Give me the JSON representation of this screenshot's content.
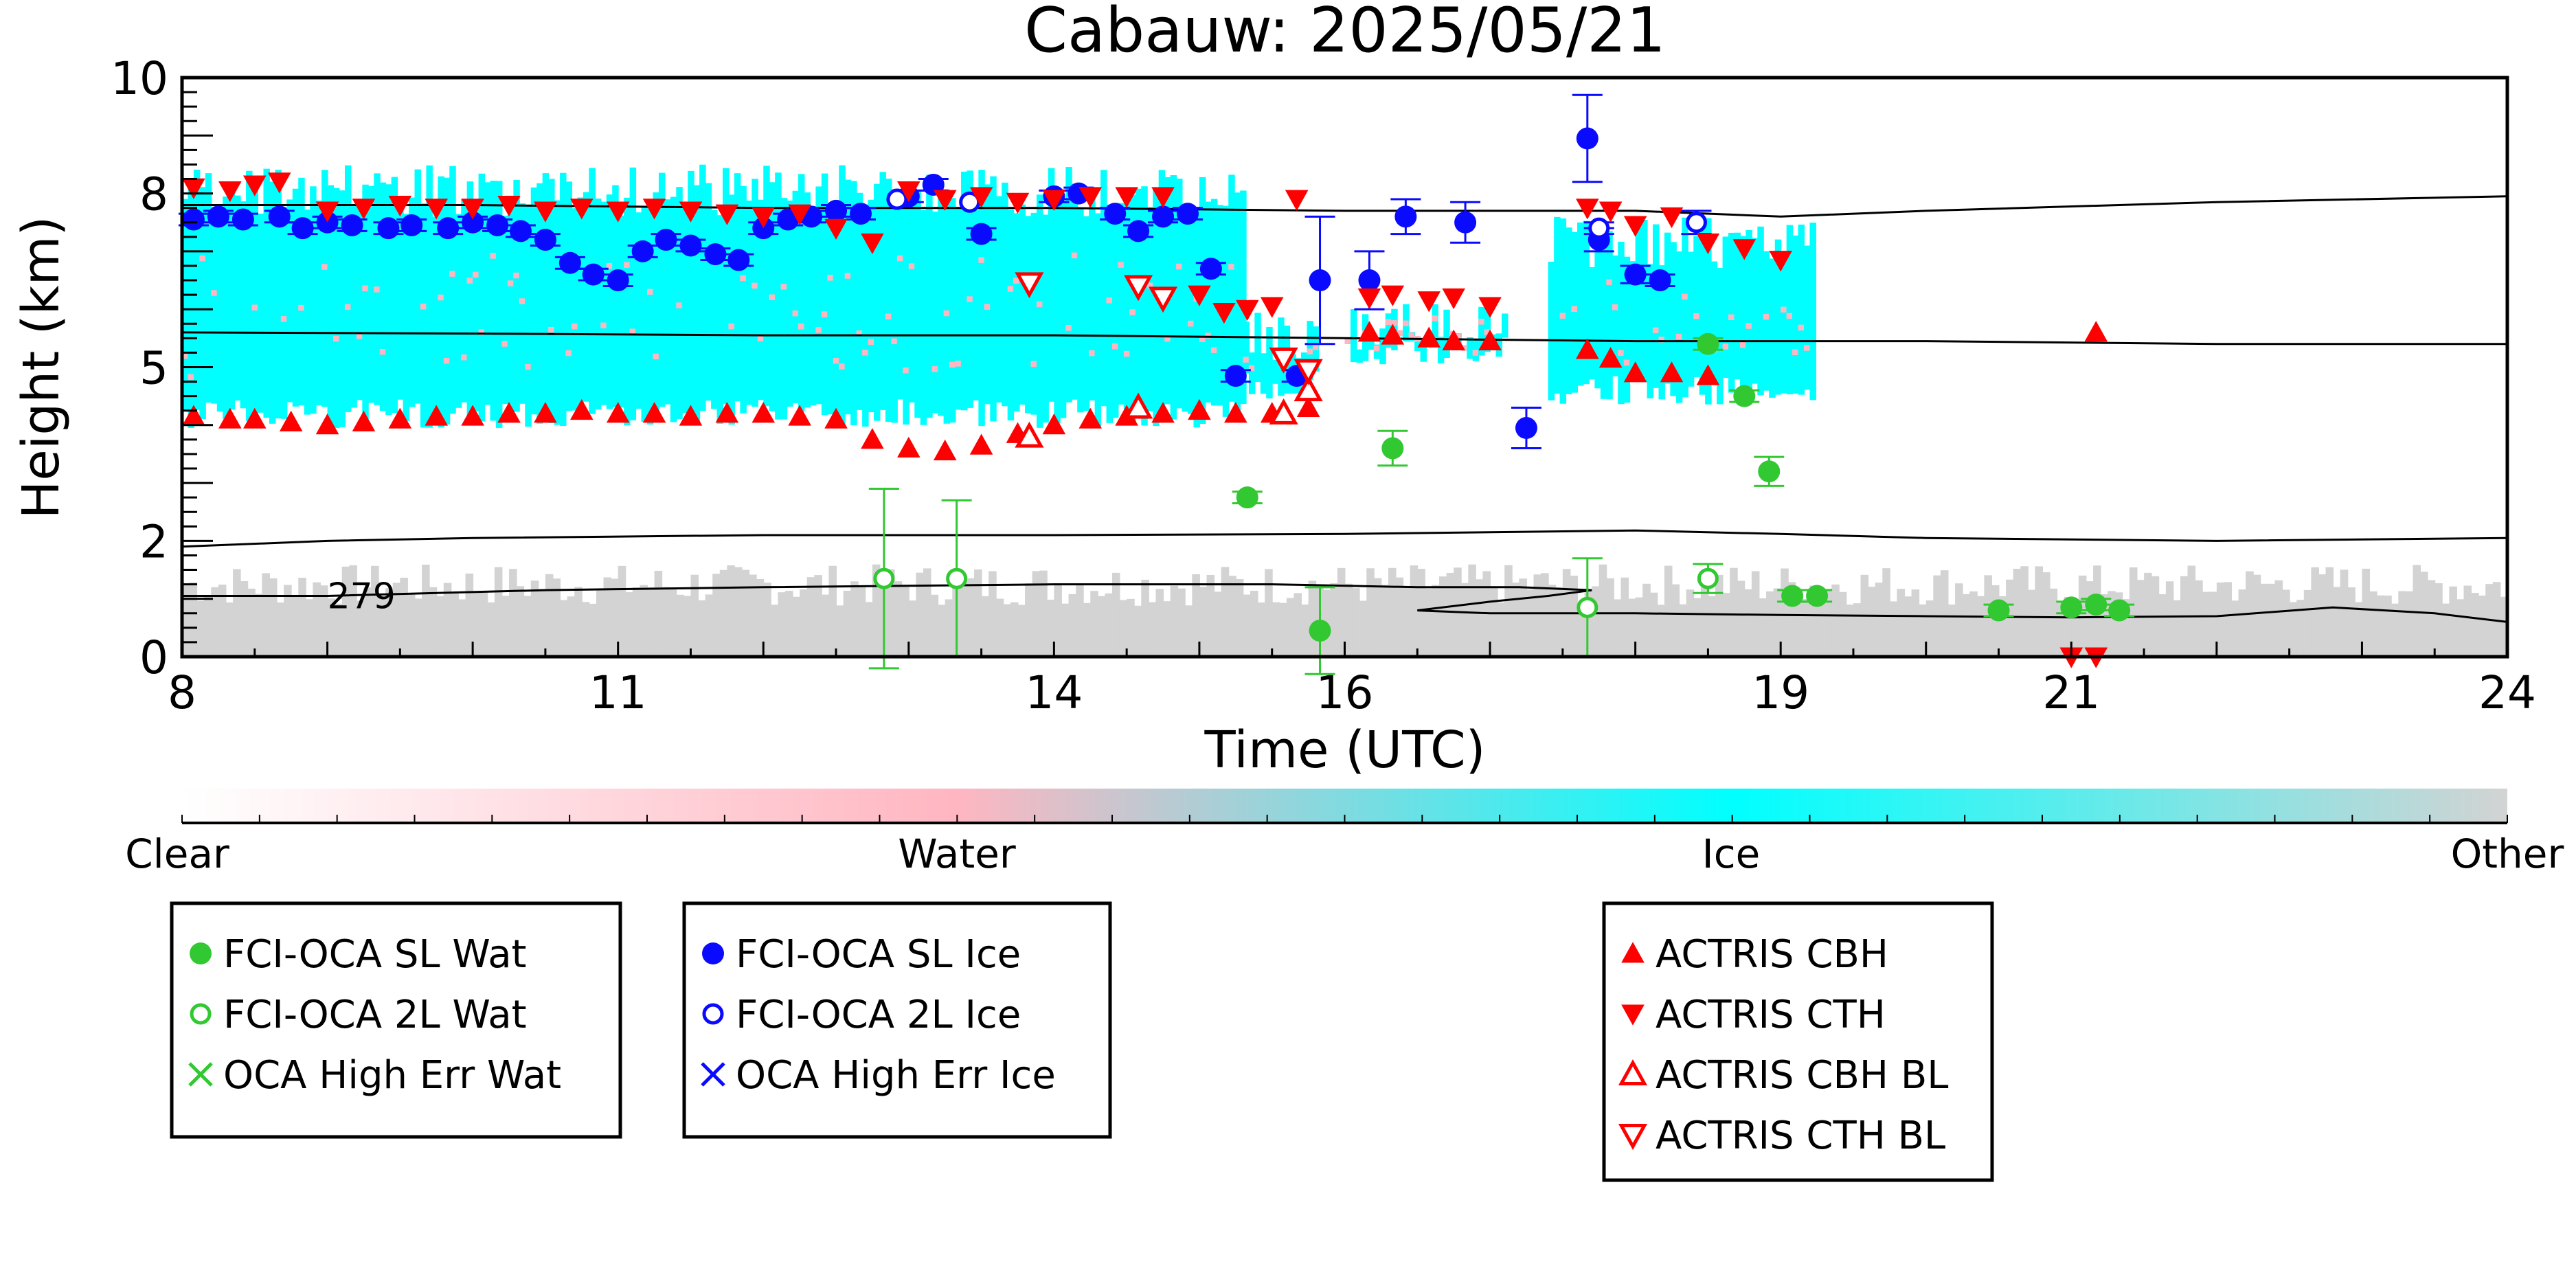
{
  "chart_data": {
    "type": "scatter",
    "title": "Cabauw: 2025/05/21",
    "xlabel": "Time (UTC)",
    "ylabel": "Height (km)",
    "xlim": [
      8,
      24
    ],
    "ylim": [
      0,
      10
    ],
    "x_ticks": [
      8,
      11,
      14,
      16,
      19,
      21,
      24
    ],
    "y_ticks": [
      0,
      2,
      5,
      8,
      10
    ],
    "y_tick_labels": [
      "0",
      "2",
      "5",
      "8",
      "10"
    ],
    "grid": false,
    "colorbar": {
      "labels": [
        "Clear",
        "Water",
        "Ice",
        "Other"
      ],
      "colors": [
        "#ffffff",
        "#ffb6c1",
        "#00ffff",
        "#d3d3d3"
      ]
    },
    "background_field": {
      "description_free": true,
      "ice_layers": [
        {
          "x": [
            8.0,
            15.3
          ],
          "base": 4.2,
          "top": 8.5
        },
        {
          "x": [
            15.3,
            15.8
          ],
          "base": 4.7,
          "top": 6.0
        },
        {
          "x": [
            16.0,
            17.1
          ],
          "base": 5.3,
          "top": 6.1
        },
        {
          "x": [
            17.4,
            19.2
          ],
          "base": 4.6,
          "top": 7.6
        }
      ],
      "other_layer": {
        "x": [
          8.0,
          24.0
        ],
        "base": 0.0,
        "top": 1.6
      }
    },
    "contours": [
      {
        "label": "",
        "x": [
          8,
          10,
          12,
          14,
          16,
          18,
          19,
          20,
          22,
          24
        ],
        "y": [
          7.8,
          7.8,
          7.75,
          7.75,
          7.7,
          7.7,
          7.6,
          7.7,
          7.85,
          7.95
        ]
      },
      {
        "label": "",
        "x": [
          8,
          10,
          12,
          14,
          16,
          18,
          19,
          20,
          22,
          24
        ],
        "y": [
          5.6,
          5.58,
          5.55,
          5.55,
          5.5,
          5.45,
          5.45,
          5.45,
          5.4,
          5.4
        ]
      },
      {
        "label": "",
        "x": [
          8,
          9,
          10,
          12,
          14,
          16,
          17,
          18,
          19,
          20,
          22,
          24
        ],
        "y": [
          1.9,
          2.0,
          2.05,
          2.1,
          2.1,
          2.12,
          2.15,
          2.18,
          2.12,
          2.05,
          2.0,
          2.05
        ]
      },
      {
        "label": "279",
        "x": [
          8,
          9,
          10.5,
          12,
          14,
          15.5,
          16.5,
          17.2,
          17.7,
          17.4,
          17.0,
          16.5,
          17.0,
          18.0,
          19.0,
          20.0,
          21.0,
          22.0,
          22.8,
          23.5,
          24.0
        ],
        "y": [
          1.05,
          1.05,
          1.15,
          1.2,
          1.25,
          1.25,
          1.2,
          1.2,
          1.15,
          1.05,
          0.95,
          0.8,
          0.75,
          0.75,
          0.72,
          0.7,
          0.68,
          0.7,
          0.85,
          0.75,
          0.6
        ]
      }
    ],
    "series": [
      {
        "name": "FCI-OCA SL Wat",
        "marker": "filled-circle",
        "color": "#32c832",
        "x": [
          15.33,
          15.83,
          16.33,
          18.5,
          18.75,
          18.92,
          19.08,
          19.25,
          20.5,
          21.0,
          21.17,
          21.33
        ],
        "y": [
          2.75,
          0.45,
          3.6,
          5.4,
          4.5,
          3.2,
          1.05,
          1.05,
          0.8,
          0.85,
          0.9,
          0.8
        ],
        "err": [
          0.1,
          0.75,
          0.3,
          0.1,
          0.1,
          0.25,
          0.1,
          0.1,
          0.1,
          0.1,
          0.1,
          0.1
        ]
      },
      {
        "name": "FCI-OCA 2L Wat",
        "marker": "open-circle",
        "color": "#32c832",
        "x": [
          12.83,
          13.33,
          17.67,
          18.5
        ],
        "y": [
          1.35,
          1.35,
          0.85,
          1.35
        ],
        "err": [
          1.55,
          1.35,
          0.85,
          0.25
        ]
      },
      {
        "name": "OCA High Err Wat",
        "marker": "x",
        "color": "#32c832",
        "x": [],
        "y": []
      },
      {
        "name": "FCI-OCA SL Ice",
        "marker": "filled-circle",
        "color": "#0a0aff",
        "x": [
          8.08,
          8.25,
          8.42,
          8.67,
          8.83,
          9.0,
          9.17,
          9.42,
          9.58,
          9.83,
          10.0,
          10.17,
          10.33,
          10.5,
          10.67,
          10.83,
          11.0,
          11.17,
          11.33,
          11.5,
          11.67,
          11.83,
          12.0,
          12.17,
          12.33,
          12.5,
          12.67,
          13.0,
          13.17,
          13.5,
          14.0,
          14.17,
          14.42,
          14.58,
          14.75,
          14.92,
          15.08,
          15.25,
          15.67,
          15.83,
          16.17,
          16.42,
          16.83,
          17.25,
          17.67,
          17.75,
          18.0,
          18.17
        ],
        "y": [
          7.55,
          7.6,
          7.55,
          7.6,
          7.4,
          7.5,
          7.45,
          7.4,
          7.45,
          7.4,
          7.5,
          7.45,
          7.35,
          7.2,
          6.8,
          6.6,
          6.5,
          7.0,
          7.2,
          7.1,
          6.95,
          6.85,
          7.4,
          7.55,
          7.6,
          7.7,
          7.65,
          7.95,
          8.15,
          7.3,
          7.95,
          8.0,
          7.65,
          7.35,
          7.6,
          7.65,
          6.7,
          4.85,
          4.85,
          6.5,
          6.5,
          7.6,
          7.5,
          3.95,
          8.95,
          7.2,
          6.6,
          6.5
        ],
        "err": [
          0.1,
          0.1,
          0.1,
          0.1,
          0.1,
          0.1,
          0.1,
          0.1,
          0.1,
          0.1,
          0.1,
          0.1,
          0.1,
          0.1,
          0.1,
          0.1,
          0.1,
          0.1,
          0.1,
          0.1,
          0.1,
          0.1,
          0.1,
          0.1,
          0.1,
          0.1,
          0.1,
          0.1,
          0.1,
          0.1,
          0.1,
          0.1,
          0.1,
          0.1,
          0.1,
          0.1,
          0.1,
          0.1,
          0.1,
          1.1,
          0.5,
          0.3,
          0.35,
          0.35,
          0.75,
          0.2,
          0.15,
          0.1
        ]
      },
      {
        "name": "FCI-OCA 2L Ice",
        "marker": "open-circle",
        "color": "#0a0aff",
        "x": [
          12.92,
          13.42,
          17.75,
          18.42
        ],
        "y": [
          7.9,
          7.85,
          7.4,
          7.5
        ],
        "err": [
          0.0,
          0.0,
          0.1,
          0.2
        ]
      },
      {
        "name": "OCA High Err Ice",
        "marker": "x",
        "color": "#0a0aff",
        "x": [],
        "y": []
      },
      {
        "name": "ACTRIS CBH",
        "marker": "filled-triangle-up",
        "color": "#ff0000",
        "x": [
          8.08,
          8.33,
          8.5,
          8.75,
          9.0,
          9.25,
          9.5,
          9.75,
          10.0,
          10.25,
          10.5,
          10.75,
          11.0,
          11.25,
          11.5,
          11.75,
          12.0,
          12.25,
          12.5,
          12.75,
          13.0,
          13.25,
          13.5,
          13.75,
          14.0,
          14.25,
          14.5,
          14.75,
          15.0,
          15.25,
          15.5,
          15.75,
          16.17,
          16.33,
          16.58,
          16.75,
          17.0,
          17.67,
          17.83,
          18.0,
          18.25,
          18.5,
          21.17
        ],
        "y": [
          4.15,
          4.1,
          4.1,
          4.05,
          4.0,
          4.05,
          4.1,
          4.15,
          4.15,
          4.2,
          4.2,
          4.25,
          4.2,
          4.2,
          4.15,
          4.2,
          4.2,
          4.15,
          4.1,
          3.75,
          3.6,
          3.55,
          3.65,
          3.85,
          4.0,
          4.1,
          4.15,
          4.2,
          4.25,
          4.2,
          4.2,
          4.3,
          5.6,
          5.55,
          5.5,
          5.45,
          5.45,
          5.3,
          5.15,
          4.9,
          4.9,
          4.85,
          5.6
        ],
        "err": []
      },
      {
        "name": "ACTRIS CTH",
        "marker": "filled-triangle-down",
        "color": "#ff0000",
        "x": [
          8.08,
          8.33,
          8.5,
          8.67,
          9.0,
          9.25,
          9.5,
          9.75,
          10.0,
          10.25,
          10.5,
          10.75,
          11.0,
          11.25,
          11.5,
          11.75,
          12.0,
          12.25,
          12.5,
          12.75,
          13.0,
          13.25,
          13.5,
          13.75,
          14.0,
          14.25,
          14.5,
          14.75,
          15.0,
          15.17,
          15.33,
          15.5,
          15.67,
          16.17,
          16.33,
          16.58,
          16.75,
          17.0,
          17.67,
          17.83,
          18.0,
          18.25,
          18.5,
          18.75,
          19.0,
          21.0,
          21.17
        ],
        "y": [
          8.1,
          8.05,
          8.15,
          8.2,
          7.7,
          7.75,
          7.8,
          7.75,
          7.75,
          7.8,
          7.7,
          7.75,
          7.7,
          7.75,
          7.7,
          7.65,
          7.6,
          7.65,
          7.4,
          7.15,
          8.05,
          7.9,
          7.95,
          7.85,
          7.9,
          7.95,
          7.95,
          7.95,
          6.25,
          5.95,
          6.0,
          6.05,
          7.9,
          6.2,
          6.25,
          6.15,
          6.2,
          6.05,
          7.75,
          7.7,
          7.45,
          7.6,
          7.15,
          7.05,
          6.85,
          0.0,
          0.0
        ],
        "err": []
      },
      {
        "name": "ACTRIS CBH BL",
        "marker": "open-triangle-up",
        "color": "#ff0000",
        "x": [
          13.83,
          14.58,
          15.58,
          15.75
        ],
        "y": [
          3.8,
          4.3,
          4.2,
          4.6
        ],
        "err": []
      },
      {
        "name": "ACTRIS CTH BL",
        "marker": "open-triangle-down",
        "color": "#ff0000",
        "x": [
          13.83,
          14.58,
          14.75,
          15.58,
          15.75
        ],
        "y": [
          6.45,
          6.4,
          6.2,
          5.15,
          4.95
        ],
        "err": []
      }
    ],
    "legend": [
      {
        "box": "left",
        "entries": [
          "FCI-OCA SL Wat",
          "FCI-OCA 2L Wat",
          "OCA High Err Wat"
        ]
      },
      {
        "box": "middle",
        "entries": [
          "FCI-OCA SL Ice",
          "FCI-OCA 2L Ice",
          "OCA High Err Ice"
        ]
      },
      {
        "box": "right",
        "entries": [
          "ACTRIS CBH",
          "ACTRIS CTH",
          "ACTRIS CBH BL",
          "ACTRIS CTH BL"
        ]
      }
    ]
  }
}
